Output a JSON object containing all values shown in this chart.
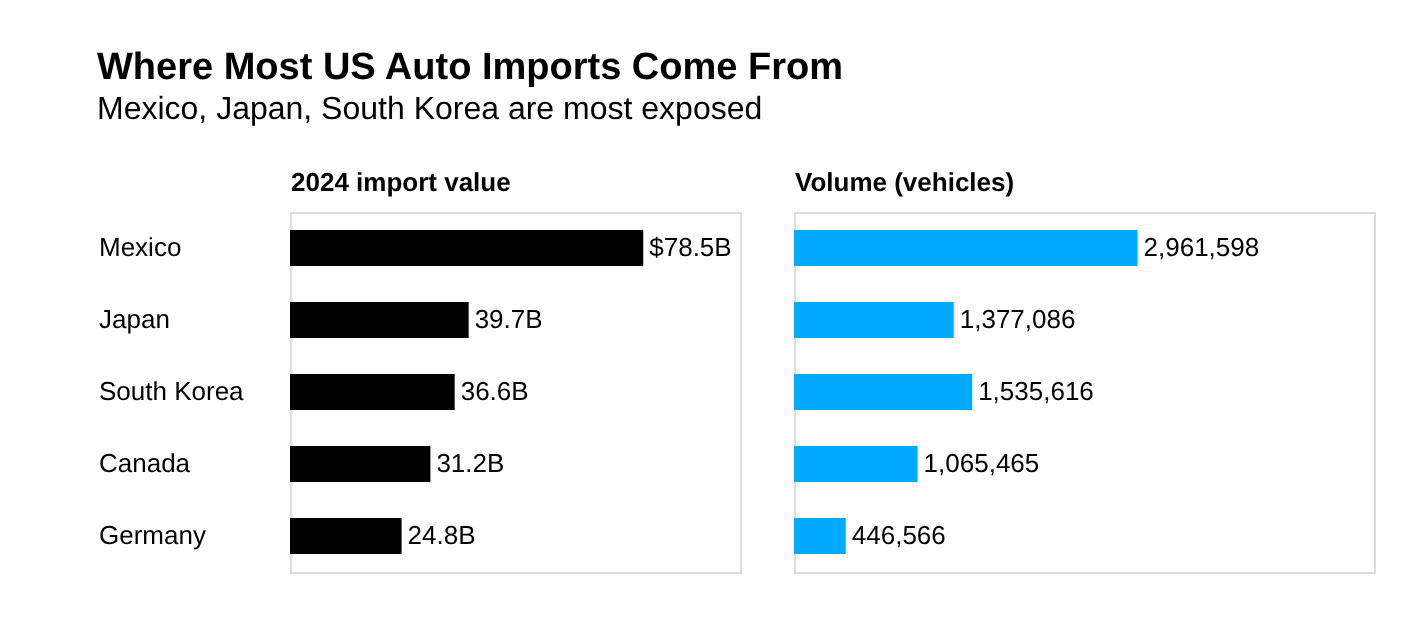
{
  "chart_data": [
    {
      "type": "bar",
      "orientation": "horizontal",
      "title": "Where Most US Auto Imports Come From",
      "subtitle": "Mexico, Japan, South Korea are most exposed",
      "xlabel": "2024 import value",
      "categories": [
        "Mexico",
        "Japan",
        "South Korea",
        "Canada",
        "Germany"
      ],
      "series": [
        {
          "color": "#000000",
          "values": [
            78.5,
            39.7,
            36.6,
            31.2,
            24.8
          ],
          "value_labels": [
            "$78.5B",
            "39.7B",
            "36.6B",
            "31.2B",
            "24.8B"
          ]
        }
      ],
      "xlim": [
        0,
        100
      ],
      "tick_labels": "y"
    },
    {
      "type": "bar",
      "orientation": "horizontal",
      "xlabel": "Volume (vehicles)",
      "categories": [
        null,
        null,
        null,
        null,
        null
      ],
      "series": [
        {
          "color": "#00aaff",
          "values": [
            2961598,
            1377086,
            1535616,
            1065465,
            446566
          ],
          "value_labels": [
            "2,961,598",
            "1,377,086",
            "1,535,616",
            "1,065,465",
            "446,566"
          ]
        }
      ],
      "xlim": [
        0,
        5000000
      ],
      "tick_labels": false
    }
  ]
}
